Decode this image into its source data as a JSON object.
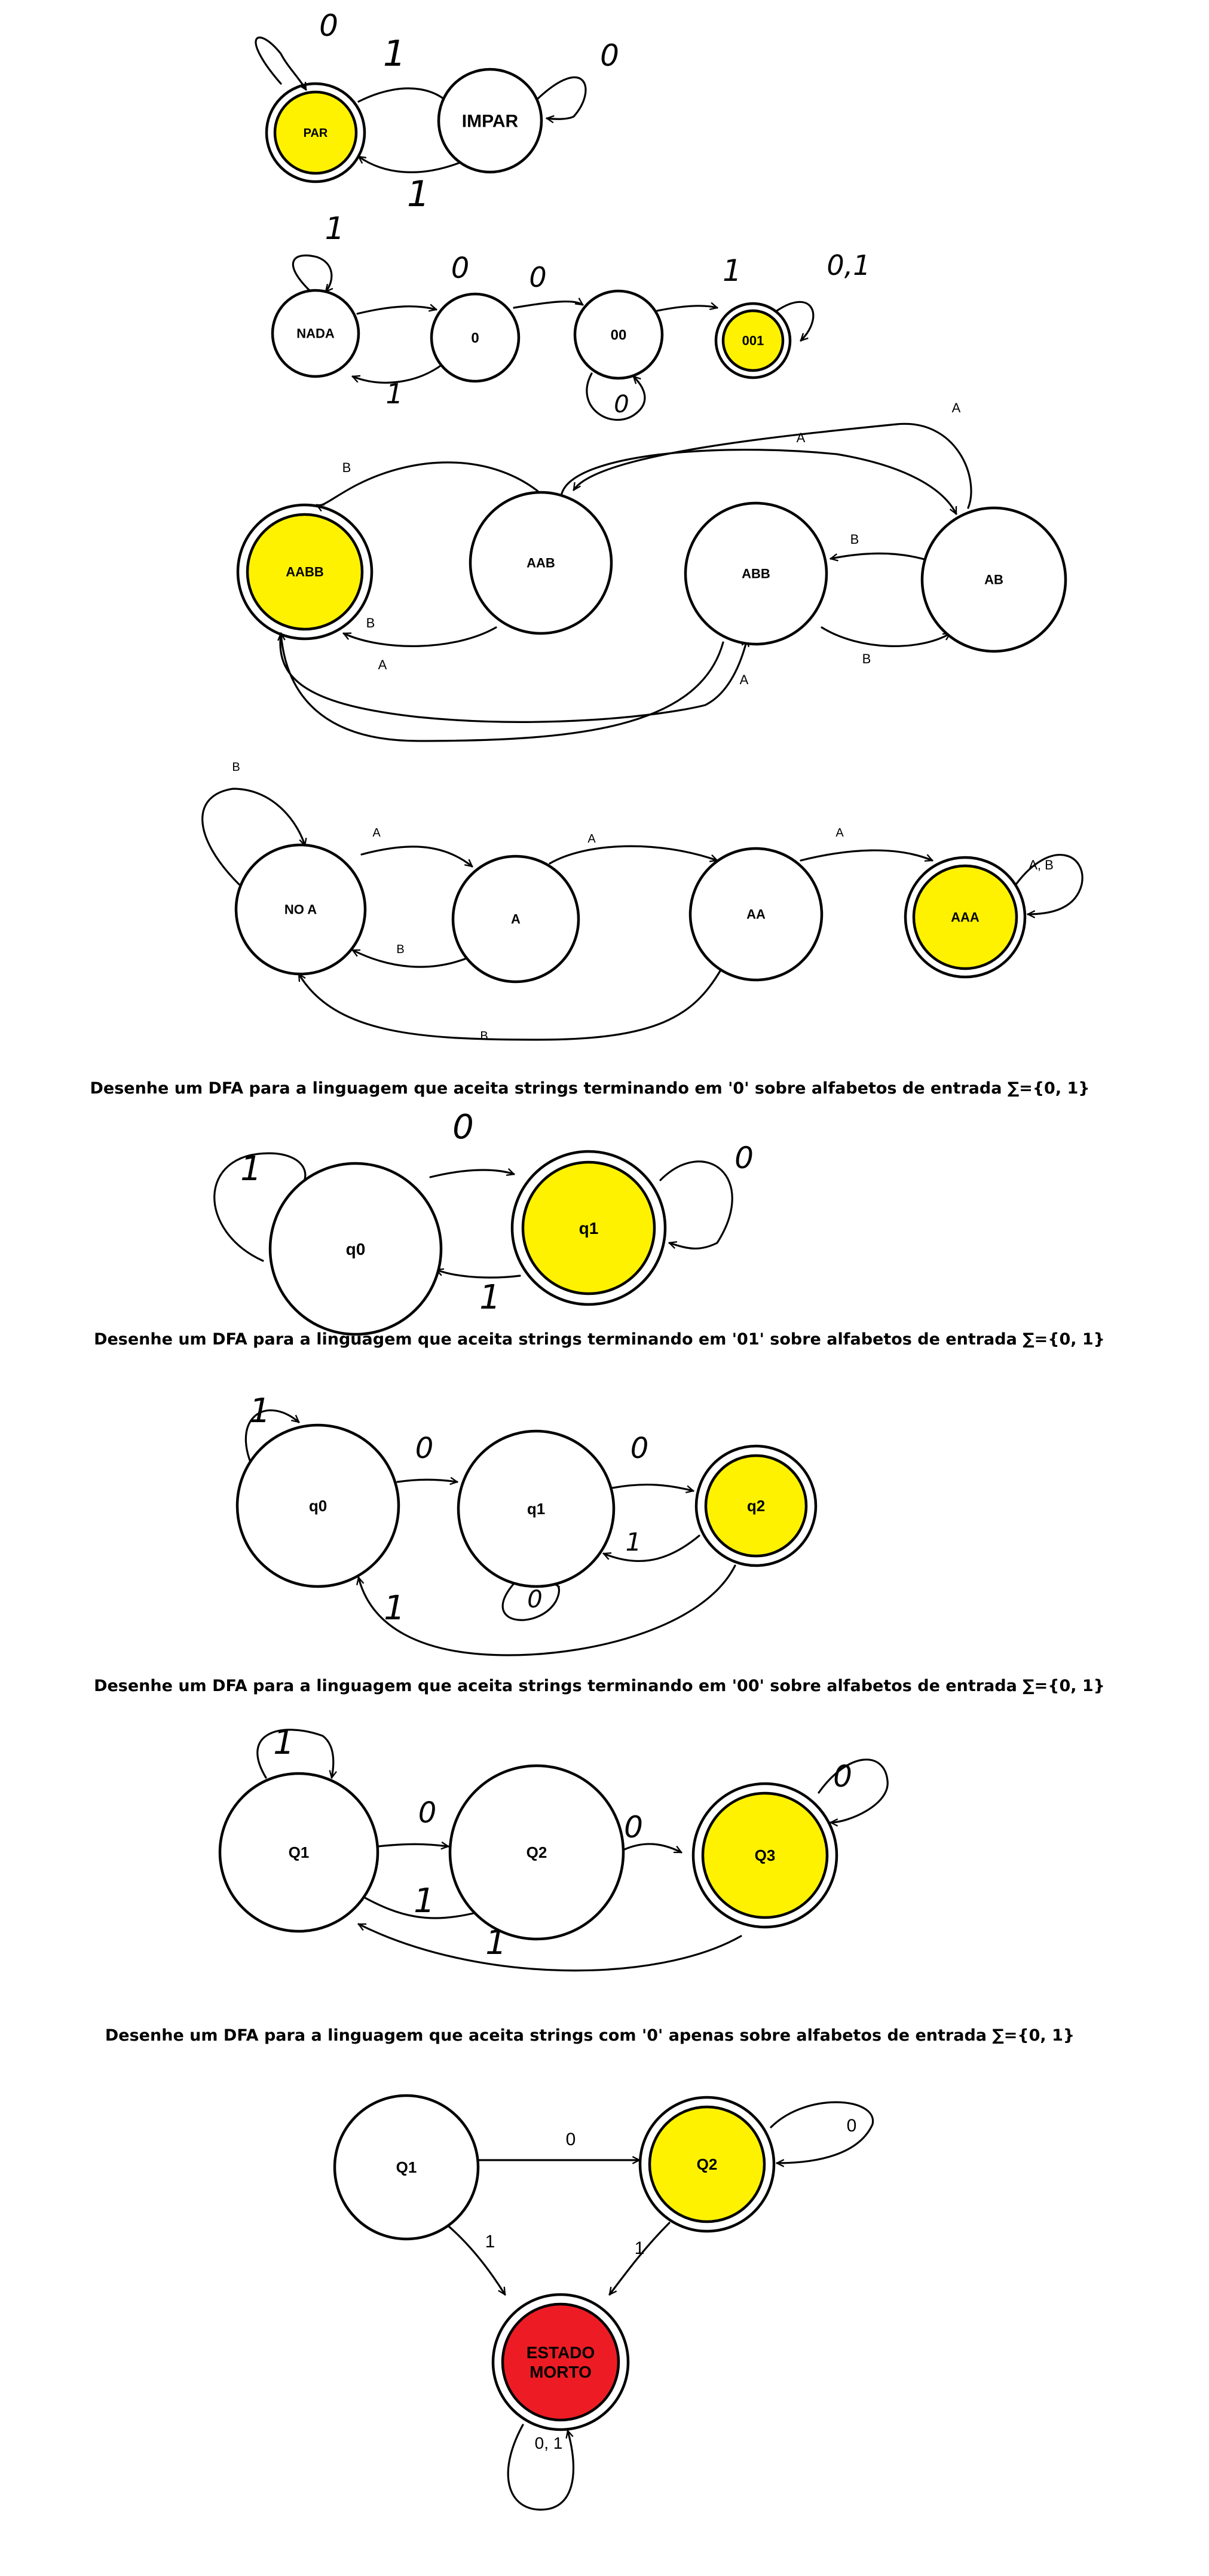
{
  "colors": {
    "accept_fill": "#fff200",
    "dead_fill": "#ed1c24",
    "normal_fill": "#ffffff",
    "stroke": "#000000"
  },
  "captions": [
    "Desenhe um DFA para a linguagem que aceita strings terminando em '0' sobre alfabetos de entrada ∑={0, 1}",
    "Desenhe um DFA para a linguagem que aceita strings terminando em '01' sobre alfabetos de entrada ∑={0, 1}",
    "Desenhe um DFA para a linguagem que aceita strings terminando em '00' sobre alfabetos de entrada ∑={0, 1}",
    "Desenhe um DFA para a linguagem que aceita strings com '0' apenas sobre alfabetos de entrada ∑={0, 1}"
  ],
  "diagrams": [
    {
      "name": "par-impar",
      "states": [
        {
          "id": "PAR",
          "label": "PAR",
          "accepting": true
        },
        {
          "id": "IMPAR",
          "label": "IMPAR",
          "accepting": false
        }
      ],
      "transitions": [
        {
          "from": "PAR",
          "to": "PAR",
          "label": "0"
        },
        {
          "from": "PAR",
          "to": "IMPAR",
          "label": "1"
        },
        {
          "from": "IMPAR",
          "to": "IMPAR",
          "label": "0"
        },
        {
          "from": "IMPAR",
          "to": "PAR",
          "label": "1"
        }
      ]
    },
    {
      "name": "contains-001",
      "states": [
        {
          "id": "NADA",
          "label": "NADA",
          "accepting": false
        },
        {
          "id": "0",
          "label": "0",
          "accepting": false
        },
        {
          "id": "00",
          "label": "00",
          "accepting": false
        },
        {
          "id": "001",
          "label": "001",
          "accepting": true
        }
      ],
      "transitions": [
        {
          "from": "NADA",
          "to": "NADA",
          "label": "1"
        },
        {
          "from": "NADA",
          "to": "0",
          "label": "0"
        },
        {
          "from": "0",
          "to": "00",
          "label": "0"
        },
        {
          "from": "0",
          "to": "NADA",
          "label": "1"
        },
        {
          "from": "00",
          "to": "00",
          "label": "0"
        },
        {
          "from": "00",
          "to": "001",
          "label": "1"
        },
        {
          "from": "001",
          "to": "001",
          "label": "0,1"
        }
      ]
    },
    {
      "name": "aabb",
      "states": [
        {
          "id": "AABB",
          "label": "AABB",
          "accepting": true
        },
        {
          "id": "AAB",
          "label": "AAB",
          "accepting": false
        },
        {
          "id": "ABB",
          "label": "ABB",
          "accepting": false
        },
        {
          "id": "AB",
          "label": "AB",
          "accepting": false
        }
      ],
      "transitions": [
        {
          "from": "AAB",
          "to": "AABB",
          "label": "B"
        },
        {
          "from": "AABB",
          "to": "AAB",
          "label": "B"
        },
        {
          "from": "ABB",
          "to": "AABB",
          "label": "A"
        },
        {
          "from": "AABB",
          "to": "AB",
          "label": "A"
        },
        {
          "from": "AAB",
          "to": "AB",
          "label": "A"
        },
        {
          "from": "AB",
          "to": "AAB",
          "label": "A"
        },
        {
          "from": "AB",
          "to": "ABB",
          "label": "B"
        },
        {
          "from": "ABB",
          "to": "AB",
          "label": "B"
        }
      ]
    },
    {
      "name": "aaa",
      "states": [
        {
          "id": "NOA",
          "label": "NO A",
          "accepting": false
        },
        {
          "id": "A",
          "label": "A",
          "accepting": false
        },
        {
          "id": "AA",
          "label": "AA",
          "accepting": false
        },
        {
          "id": "AAA",
          "label": "AAA",
          "accepting": true
        }
      ],
      "transitions": [
        {
          "from": "NOA",
          "to": "NOA",
          "label": "B"
        },
        {
          "from": "NOA",
          "to": "A",
          "label": "A"
        },
        {
          "from": "A",
          "to": "NOA",
          "label": "B"
        },
        {
          "from": "A",
          "to": "AA",
          "label": "A"
        },
        {
          "from": "AA",
          "to": "NOA",
          "label": "B"
        },
        {
          "from": "AA",
          "to": "AAA",
          "label": "A"
        },
        {
          "from": "AAA",
          "to": "AAA",
          "label": "A, B"
        }
      ]
    },
    {
      "name": "ends-0",
      "states": [
        {
          "id": "q0",
          "label": "q0",
          "accepting": false
        },
        {
          "id": "q1",
          "label": "q1",
          "accepting": true
        }
      ],
      "transitions": [
        {
          "from": "q0",
          "to": "q0",
          "label": "1"
        },
        {
          "from": "q0",
          "to": "q1",
          "label": "0"
        },
        {
          "from": "q1",
          "to": "q1",
          "label": "0"
        },
        {
          "from": "q1",
          "to": "q0",
          "label": "1"
        }
      ]
    },
    {
      "name": "ends-01",
      "states": [
        {
          "id": "q0",
          "label": "q0",
          "accepting": false
        },
        {
          "id": "q1",
          "label": "q1",
          "accepting": false
        },
        {
          "id": "q2",
          "label": "q2",
          "accepting": true
        }
      ],
      "transitions": [
        {
          "from": "q0",
          "to": "q0",
          "label": "1"
        },
        {
          "from": "q0",
          "to": "q1",
          "label": "0"
        },
        {
          "from": "q1",
          "to": "q1",
          "label": "0"
        },
        {
          "from": "q1",
          "to": "q2",
          "label": "1"
        },
        {
          "from": "q2",
          "to": "q1",
          "label": "0"
        },
        {
          "from": "q2",
          "to": "q0",
          "label": "1"
        }
      ]
    },
    {
      "name": "ends-00",
      "states": [
        {
          "id": "Q1",
          "label": "Q1",
          "accepting": false
        },
        {
          "id": "Q2",
          "label": "Q2",
          "accepting": false
        },
        {
          "id": "Q3",
          "label": "Q3",
          "accepting": true
        }
      ],
      "transitions": [
        {
          "from": "Q1",
          "to": "Q1",
          "label": "1"
        },
        {
          "from": "Q1",
          "to": "Q2",
          "label": "0"
        },
        {
          "from": "Q2",
          "to": "Q1",
          "label": "1"
        },
        {
          "from": "Q2",
          "to": "Q3",
          "label": "0"
        },
        {
          "from": "Q3",
          "to": "Q3",
          "label": "0"
        },
        {
          "from": "Q3",
          "to": "Q1",
          "label": "1"
        }
      ]
    },
    {
      "name": "only-0",
      "states": [
        {
          "id": "Q1",
          "label": "Q1",
          "accepting": false
        },
        {
          "id": "Q2",
          "label": "Q2",
          "accepting": true
        },
        {
          "id": "MORTO",
          "label": "ESTADO MORTO",
          "accepting": false,
          "dead": true
        }
      ],
      "transitions": [
        {
          "from": "Q1",
          "to": "Q2",
          "label": "0"
        },
        {
          "from": "Q2",
          "to": "Q2",
          "label": "0"
        },
        {
          "from": "Q1",
          "to": "MORTO",
          "label": "1"
        },
        {
          "from": "Q2",
          "to": "MORTO",
          "label": "1"
        },
        {
          "from": "MORTO",
          "to": "MORTO",
          "label": "0, 1"
        }
      ]
    }
  ]
}
